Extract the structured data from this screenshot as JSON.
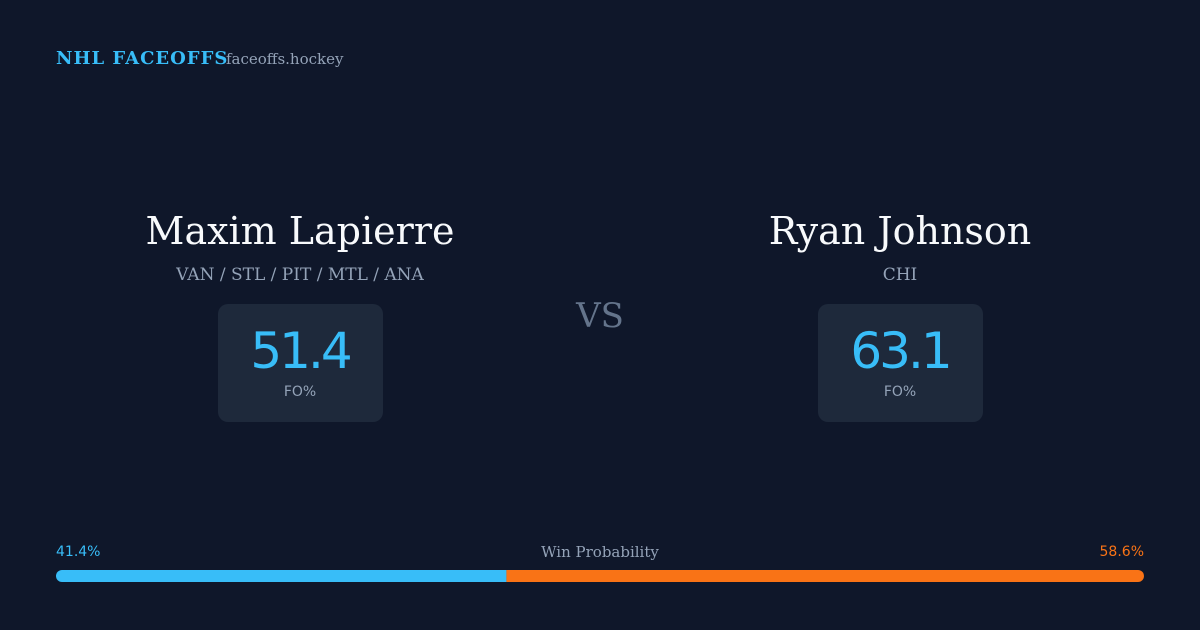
{
  "header": {
    "brand": "NHL FACEOFFS",
    "site": "faceoffs.hockey"
  },
  "players": [
    {
      "name": "Maxim Lapierre",
      "teams": "VAN / STL / PIT / MTL / ANA",
      "fo": 51.4,
      "fo_label": "FO%"
    },
    {
      "name": "Ryan Johnson",
      "teams": "CHI",
      "fo": 63.1,
      "fo_label": "FO%"
    }
  ],
  "vs": "VS",
  "win_probability": {
    "title": "Win Probability",
    "left": {
      "value": 41.4,
      "label": "41.4%",
      "color": "#38bdf8"
    },
    "right": {
      "value": 58.6,
      "label": "58.6%",
      "color": "#f97316"
    }
  }
}
